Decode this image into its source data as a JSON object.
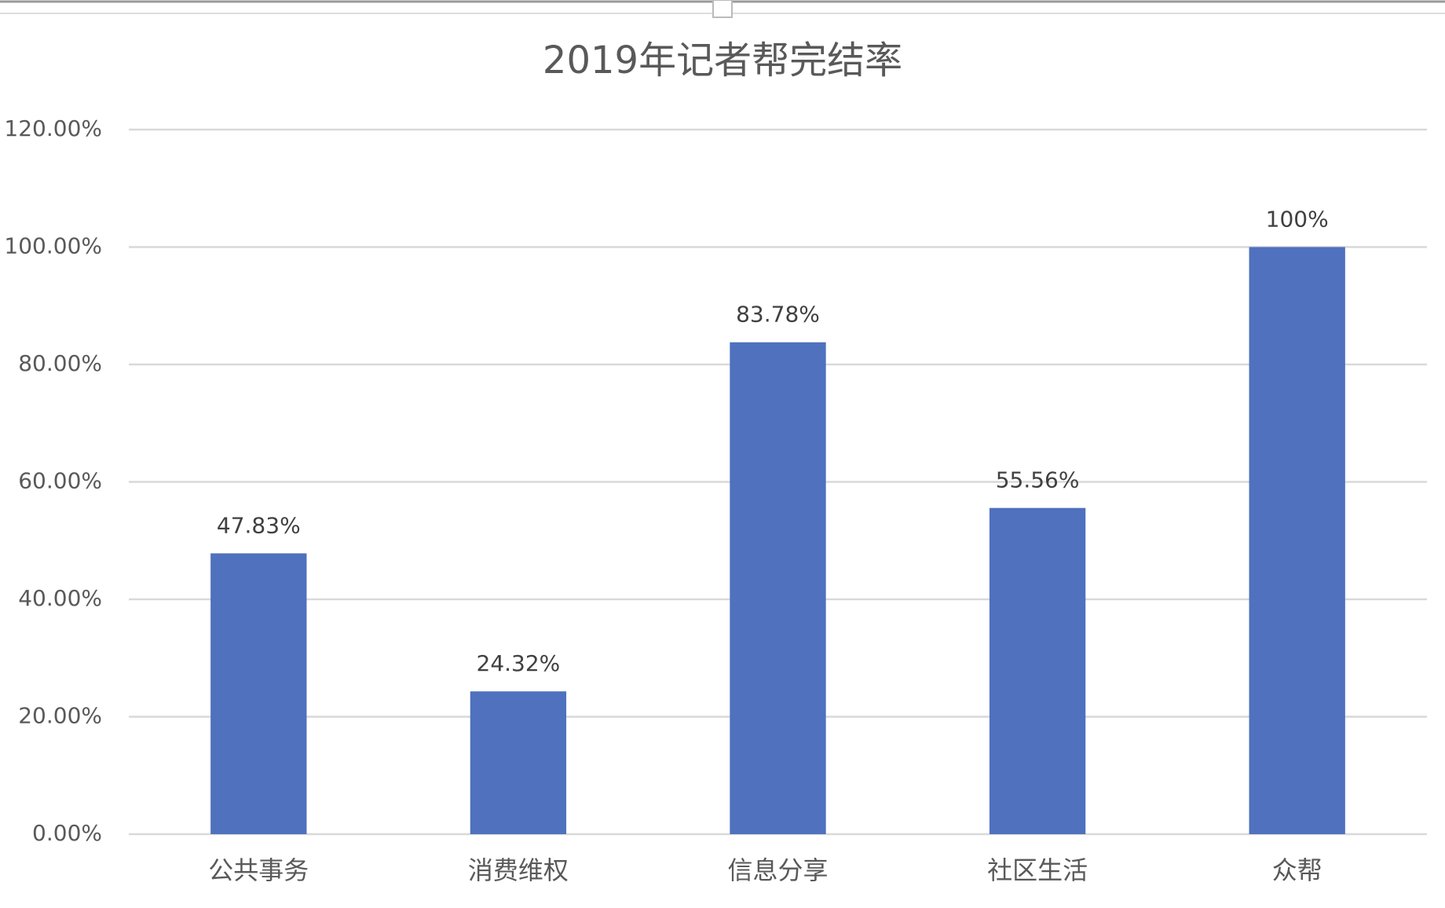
{
  "chart_data": {
    "type": "bar",
    "title": "2019年记者帮完结率",
    "categories": [
      "公共事务",
      "消费维权",
      "信息分享",
      "社区生活",
      "众帮"
    ],
    "values": [
      47.83,
      24.32,
      83.78,
      55.56,
      100
    ],
    "value_labels": [
      "47.83%",
      "24.32%",
      "83.78%",
      "55.56%",
      "100%"
    ],
    "color": "#4f71be",
    "ylim": [
      0,
      120
    ],
    "yticks": [
      {
        "value": 0,
        "label": "0.00%"
      },
      {
        "value": 20,
        "label": "20.00%"
      },
      {
        "value": 40,
        "label": "40.00%"
      },
      {
        "value": 60,
        "label": "60.00%"
      },
      {
        "value": 80,
        "label": "80.00%"
      },
      {
        "value": 100,
        "label": "100.00%"
      },
      {
        "value": 120,
        "label": "120.00%"
      }
    ],
    "grid": true
  }
}
